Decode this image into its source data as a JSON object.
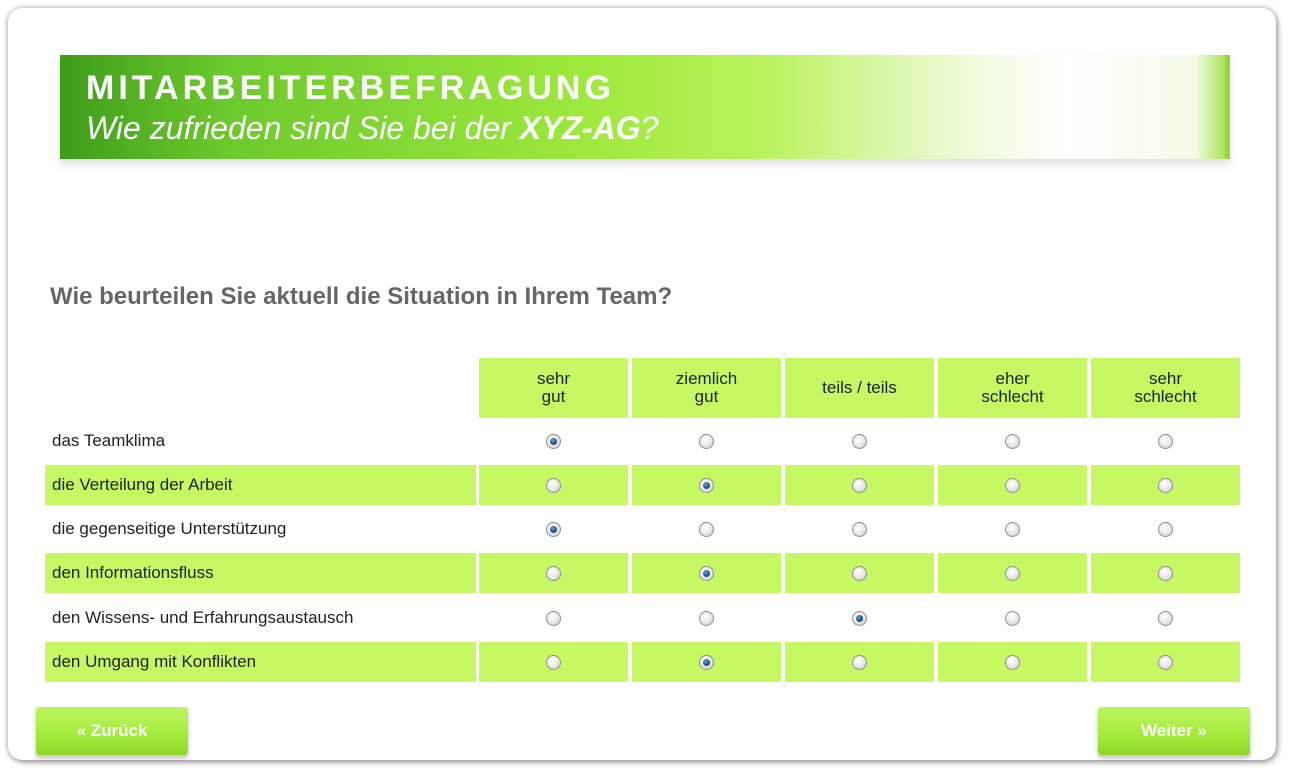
{
  "banner": {
    "title": "MITARBEITERBEFRAGUNG",
    "subtitle_prefix": "Wie zufrieden sind Sie bei der ",
    "subtitle_company": "XYZ-AG",
    "subtitle_suffix": "?"
  },
  "question": "Wie beurteilen Sie aktuell die Situation in Ihrem Team?",
  "columns": [
    {
      "line1": "sehr",
      "line2": "gut"
    },
    {
      "line1": "ziemlich",
      "line2": "gut"
    },
    {
      "line1": "teils / teils",
      "line2": ""
    },
    {
      "line1": "eher",
      "line2": "schlecht"
    },
    {
      "line1": "sehr",
      "line2": "schlecht"
    }
  ],
  "rows": [
    {
      "label": "das Teamklima",
      "selected": 0
    },
    {
      "label": "die Verteilung der Arbeit",
      "selected": 1
    },
    {
      "label": "die gegenseitige Unterstützung",
      "selected": 0
    },
    {
      "label": "den Informationsfluss",
      "selected": 1
    },
    {
      "label": "den Wissens- und Erfahrungsaustausch",
      "selected": 2
    },
    {
      "label": "den Umgang mit Konflikten",
      "selected": 1
    }
  ],
  "buttons": {
    "back_label": "« Zurück",
    "next_label": "Weiter »"
  },
  "colors": {
    "row_highlight": "#c5f862",
    "question_text": "#666666",
    "button": "#a4ec3c"
  }
}
